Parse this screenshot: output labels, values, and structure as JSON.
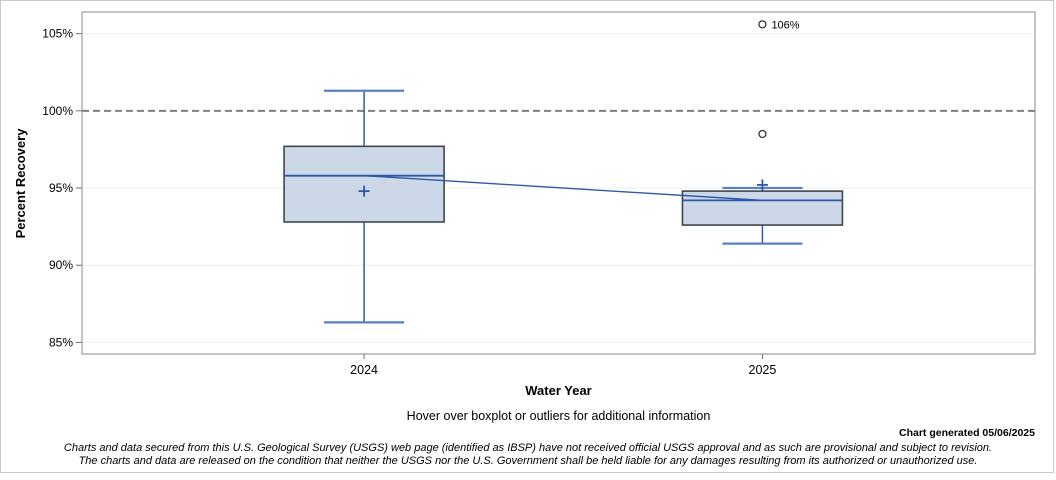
{
  "y_axis": {
    "title": "Percent Recovery"
  },
  "x_axis": {
    "title": "Water Year"
  },
  "notes": {
    "hover": "Hover over boxplot or outliers for additional information",
    "generated": "Chart generated 05/06/2025",
    "disclaimer_line1": "Charts and data secured from this U.S. Geological Survey (USGS) web page (identified as IBSP) have not received official USGS approval and as such are provisional and subject to revision.",
    "disclaimer_line2": "The charts and data are released on the condition that neither the USGS nor the U.S. Government shall be held liable for any damages resulting from its authorized or unauthorized use."
  },
  "colors": {
    "box_fill": "#ccd8e7",
    "box_border": "#3f464e",
    "line_blue": "#2e59a8",
    "cap_blue": "#5b80c0",
    "grid": "#ededed",
    "ref_line": "#7f7f7f",
    "frame": "#8a8a8a",
    "tick": "#6f6f6f",
    "outlier_stroke": "#333333"
  },
  "chart_data": {
    "type": "box",
    "title": "",
    "xlabel": "Water Year",
    "ylabel": "Percent Recovery",
    "ylim": [
      84.25,
      106.4
    ],
    "yticks": [
      {
        "value": 105,
        "label": "105%"
      },
      {
        "value": 100,
        "label": "100%"
      },
      {
        "value": 95,
        "label": "95%"
      },
      {
        "value": 90,
        "label": "90%"
      },
      {
        "value": 85,
        "label": "85%"
      }
    ],
    "reference_line": {
      "value": 100,
      "style": "dashed"
    },
    "grid": "horizontal",
    "legend": "none",
    "connect": "median",
    "categories": [
      "2024",
      "2025"
    ],
    "series": [
      {
        "category": "2024",
        "whisker_low": 86.3,
        "q1": 92.8,
        "median": 95.8,
        "q3": 97.7,
        "whisker_high": 101.3,
        "mean": 94.8,
        "outliers": []
      },
      {
        "category": "2025",
        "whisker_low": 91.4,
        "q1": 92.6,
        "median": 94.2,
        "q3": 94.8,
        "whisker_high": 95.0,
        "mean": 95.2,
        "outliers": [
          {
            "value": 98.5,
            "label": ""
          },
          {
            "value": 105.6,
            "label": "106%"
          }
        ]
      }
    ]
  }
}
